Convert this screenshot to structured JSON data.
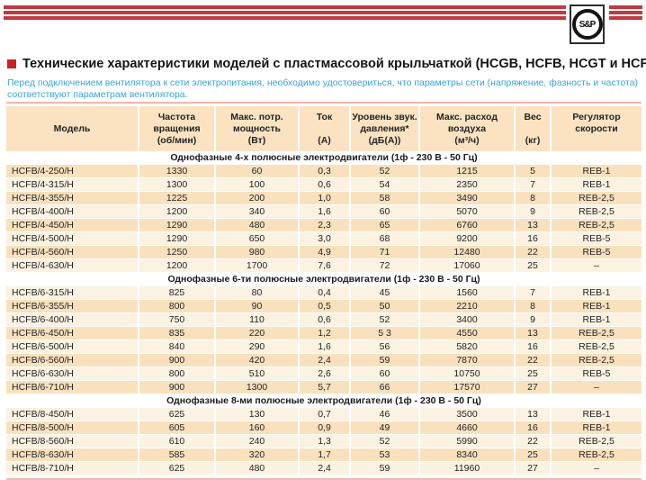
{
  "logo": {
    "text": "S&P"
  },
  "page": {
    "title": "Технические характеристики моделей с пластмассовой крыльчаткой (HCGB, HCFB, HCGT и HCFT)",
    "intro": "Перед подключением вентилятора к сети электропитания, необходимо удостовериться, что параметры сети (напряжение, фазность и частота) соответствуют параметрам вентилятора."
  },
  "colors": {
    "brand_red": "#C23A40",
    "bullet_red": "#CB2026",
    "intro_blue": "#38A5D8",
    "header_peach": "#FBE3C2",
    "row_dark": "#F9E1BE",
    "row_light": "#FCF2E2",
    "divider_salmon": "#F4B7AF"
  },
  "table": {
    "columns": [
      {
        "key": "model",
        "lines": [
          "Модель"
        ]
      },
      {
        "key": "rpm",
        "lines": [
          "Частота",
          "вращения",
          "(об/мин)"
        ]
      },
      {
        "key": "power",
        "lines": [
          "Макс. потр.",
          "мощность",
          "(Вт)"
        ]
      },
      {
        "key": "current",
        "lines": [
          "Ток",
          "",
          "(А)"
        ]
      },
      {
        "key": "noise",
        "lines": [
          "Уровень звук.",
          "давления*",
          "(дБ(А))"
        ]
      },
      {
        "key": "airflow",
        "lines": [
          "Макс. расход",
          "воздуха",
          "(м³/ч)"
        ]
      },
      {
        "key": "weight",
        "lines": [
          "Вес",
          "",
          "(кг)"
        ]
      },
      {
        "key": "regulator",
        "lines": [
          "Регулятор",
          "скорости",
          ""
        ]
      }
    ],
    "sections": [
      {
        "title": "Однофазные 4-х полюсные электродвигатели (1ф - 230 В - 50 Гц)",
        "rows": [
          {
            "tint": true,
            "cells": [
              "HCFB/4-250/H",
              "1330",
              "60",
              "0,3",
              "52",
              "1215",
              "5",
              "REB-1"
            ]
          },
          {
            "tint": false,
            "cells": [
              "HCFB/4-315/H",
              "1300",
              "100",
              "0,6",
              "54",
              "2350",
              "7",
              "REB-1"
            ]
          },
          {
            "tint": true,
            "cells": [
              "HCFB/4-355/H",
              "1225",
              "200",
              "1,0",
              "58",
              "3490",
              "8",
              "REB-2,5"
            ]
          },
          {
            "tint": false,
            "cells": [
              "HCFB/4-400/H",
              "1200",
              "340",
              "1,6",
              "60",
              "5070",
              "9",
              "REB-2,5"
            ]
          },
          {
            "tint": true,
            "cells": [
              "HCFB/4-450/H",
              "1290",
              "480",
              "2,3",
              "65",
              "6760",
              "13",
              "REB-2,5"
            ]
          },
          {
            "tint": false,
            "cells": [
              "HCFB/4-500/H",
              "1290",
              "650",
              "3,0",
              "68",
              "9200",
              "16",
              "REB-5"
            ]
          },
          {
            "tint": true,
            "cells": [
              "HCFB/4-560/H",
              "1250",
              "980",
              "4,9",
              "71",
              "12480",
              "22",
              "REB-5"
            ]
          },
          {
            "tint": false,
            "cells": [
              "HCFB/4-630/H",
              "1200",
              "1700",
              "7,6",
              "72",
              "17060",
              "25",
              "–"
            ]
          }
        ]
      },
      {
        "title": "Однофазные 6-ти полюсные электродвигатели (1ф - 230 В - 50 Гц)",
        "rows": [
          {
            "tint": false,
            "cells": [
              "HCFB/6-315/H",
              "825",
              "80",
              "0,4",
              "45",
              "1560",
              "7",
              "REB-1"
            ]
          },
          {
            "tint": true,
            "cells": [
              "HCFB/6-355/H",
              "800",
              "90",
              "0,5",
              "50",
              "2210",
              "8",
              "REB-1"
            ]
          },
          {
            "tint": false,
            "cells": [
              "HCFB/6-400/H",
              "750",
              "110",
              "0,6",
              "52",
              "3400",
              "9",
              "REB-1"
            ]
          },
          {
            "tint": true,
            "cells": [
              "HCFB/6-450/H",
              "835",
              "220",
              "1,2",
              "5 3",
              "4550",
              "13",
              "REB-2,5"
            ]
          },
          {
            "tint": false,
            "cells": [
              "HCFB/6-500/H",
              "840",
              "290",
              "1,6",
              "56",
              "5820",
              "16",
              "REB-2,5"
            ]
          },
          {
            "tint": true,
            "cells": [
              "HCFB/6-560/H",
              "900",
              "420",
              "2,4",
              "59",
              "7870",
              "22",
              "REB-2,5"
            ]
          },
          {
            "tint": false,
            "cells": [
              "HCFB/6-630/H",
              "800",
              "510",
              "2,6",
              "60",
              "10750",
              "25",
              "REB-5"
            ]
          },
          {
            "tint": true,
            "cells": [
              "HCFB/6-710/H",
              "900",
              "1300",
              "5,7",
              "66",
              "17570",
              "27",
              "–"
            ]
          }
        ]
      },
      {
        "title": "Однофазные 8-ми полюсные электродвигатели (1ф - 230 В - 50 Гц)",
        "rows": [
          {
            "tint": false,
            "cells": [
              "HCFB/8-450/H",
              "625",
              "130",
              "0,7",
              "46",
              "3500",
              "13",
              "REB-1"
            ]
          },
          {
            "tint": true,
            "cells": [
              "HCFB/8-500/H",
              "605",
              "160",
              "0,9",
              "49",
              "4660",
              "16",
              "REB-1"
            ]
          },
          {
            "tint": false,
            "cells": [
              "HCFB/8-560/H",
              "610",
              "240",
              "1,3",
              "52",
              "5990",
              "22",
              "REB-2,5"
            ]
          },
          {
            "tint": true,
            "cells": [
              "HCFB/8-630/H",
              "585",
              "320",
              "1,7",
              "53",
              "8340",
              "25",
              "REB-2,5"
            ]
          },
          {
            "tint": false,
            "cells": [
              "HCFB/8-710/H",
              "625",
              "480",
              "2,4",
              "59",
              "11960",
              "27",
              "–"
            ]
          }
        ]
      }
    ]
  }
}
